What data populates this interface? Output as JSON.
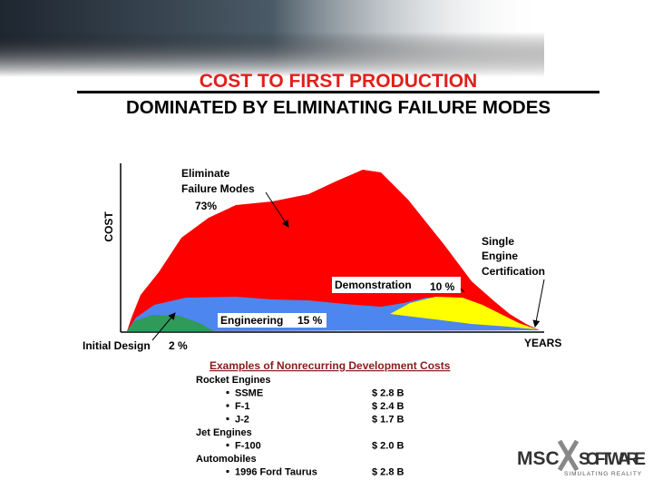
{
  "header": {
    "title": "COST TO FIRST PRODUCTION",
    "subtitle": "DOMINATED BY ELIMINATING FAILURE MODES"
  },
  "diagram": {
    "y_axis_label": "COST",
    "x_axis_label": "YEARS",
    "phases": [
      {
        "label": "Eliminate Failure Modes",
        "share": "73%"
      },
      {
        "label": "Demonstration",
        "share": "10 %"
      },
      {
        "label": "Engineering",
        "share": "15 %"
      },
      {
        "label": "Initial Design",
        "share": "2 %"
      }
    ],
    "milestone": "Single Engine Certification"
  },
  "examples": {
    "title": "Examples of Nonrecurring Development Costs",
    "groups": [
      {
        "name": "Rocket Engines",
        "items": [
          [
            "SSME",
            "$ 2.8 B"
          ],
          [
            "F-1",
            "$ 2.4 B"
          ],
          [
            "J-2",
            "$ 1.7 B"
          ]
        ]
      },
      {
        "name": "Jet Engines",
        "items": [
          [
            "F-100",
            "$ 2.0 B"
          ]
        ]
      },
      {
        "name": "Automobiles",
        "items": [
          [
            "1996 Ford Taurus",
            "$ 2.8 B"
          ]
        ]
      }
    ]
  },
  "logo": {
    "name": "MSC",
    "product": "SOFTWARE",
    "tagline": "SIMULATING REALITY"
  }
}
